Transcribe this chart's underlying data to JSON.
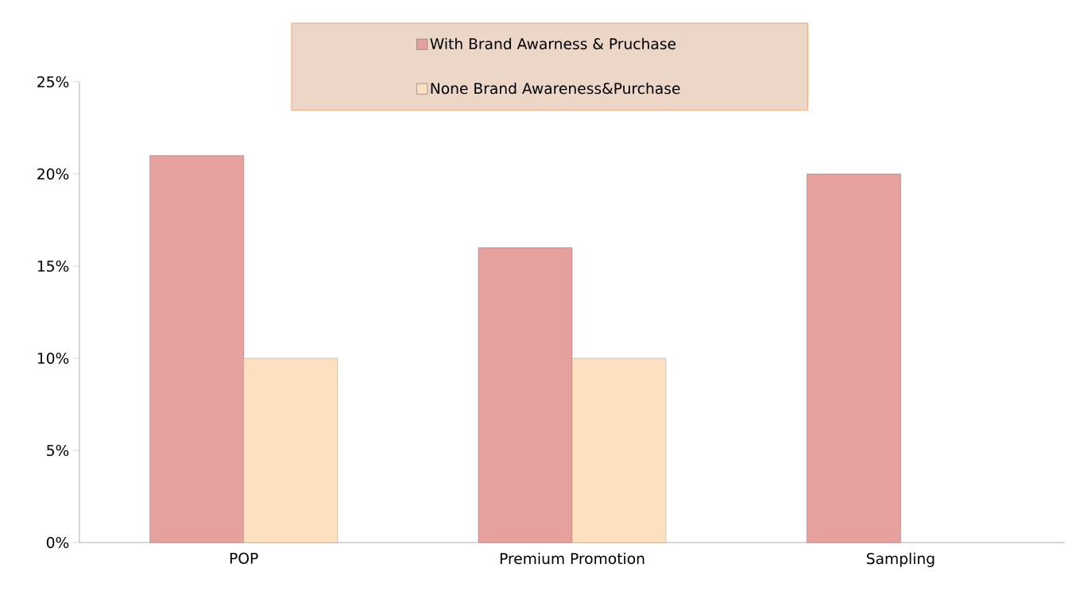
{
  "chart_data": {
    "type": "bar",
    "categories": [
      "POP",
      "Premium Promotion",
      "Sampling"
    ],
    "series": [
      {
        "name": "With Brand Awarness & Pruchase",
        "color": "#e6a09e",
        "values": [
          21,
          16,
          20
        ]
      },
      {
        "name": "None Brand Awareness&Purchase",
        "color": "#fde0bf",
        "values": [
          10,
          10,
          null
        ]
      }
    ],
    "ylim": [
      0,
      25
    ],
    "yticks": [
      {
        "value": 0,
        "label": "0%"
      },
      {
        "value": 5,
        "label": "5%"
      },
      {
        "value": 10,
        "label": "10%"
      },
      {
        "value": 15,
        "label": "15%"
      },
      {
        "value": 20,
        "label": "20%"
      },
      {
        "value": 25,
        "label": "25%"
      }
    ],
    "grid": false,
    "legend": "top"
  }
}
